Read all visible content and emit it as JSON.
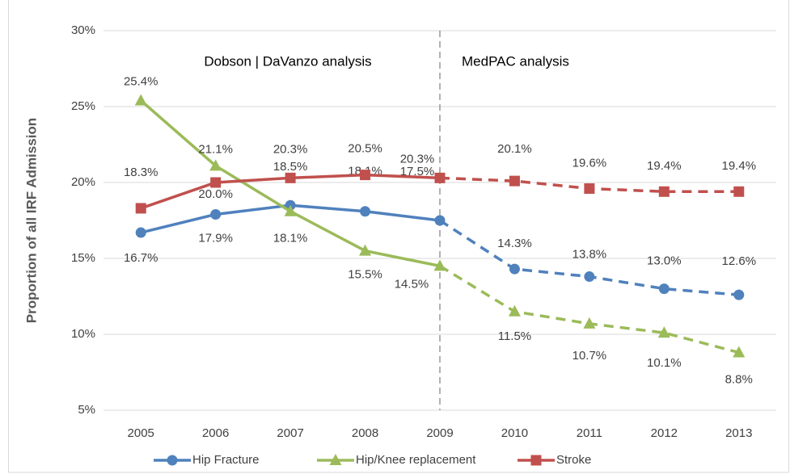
{
  "chart_data": {
    "type": "line",
    "y_label": "Proportion of all IRF Admission",
    "annotations": [
      "Dobson | DaVanzo analysis",
      "MedPAC analysis"
    ],
    "divider": "2009",
    "categories": [
      "2005",
      "2006",
      "2007",
      "2008",
      "2009",
      "2010",
      "2011",
      "2012",
      "2013"
    ],
    "series": [
      {
        "name": "Hip Fracture",
        "color": "#4f81bd",
        "marker": "circle",
        "values": [
          16.7,
          17.9,
          18.5,
          18.1,
          17.5,
          14.3,
          13.8,
          13.0,
          12.6
        ],
        "value_labels": [
          "16.7%",
          "17.9%",
          "18.5%",
          "18.1%",
          "17.5%",
          "14.3%",
          "13.8%",
          "13.0%",
          "12.6%"
        ]
      },
      {
        "name": "Hip/Knee replacement",
        "color": "#9bbb59",
        "marker": "triangle",
        "values": [
          25.4,
          21.1,
          18.1,
          15.5,
          14.5,
          11.5,
          10.7,
          10.1,
          8.8
        ],
        "value_labels": [
          "25.4%",
          "21.1%",
          "18.1%",
          "15.5%",
          "14.5%",
          "11.5%",
          "10.7%",
          "10.1%",
          "8.8%"
        ]
      },
      {
        "name": "Stroke",
        "color": "#c0504d",
        "marker": "square",
        "values": [
          18.3,
          20.0,
          20.3,
          20.5,
          20.3,
          20.1,
          19.6,
          19.4,
          19.4
        ],
        "value_labels": [
          "18.3%",
          "20.0%",
          "20.3%",
          "20.5%",
          "20.3%",
          "20.1%",
          "19.6%",
          "19.4%",
          "19.4%"
        ]
      }
    ],
    "ylim": [
      5,
      30
    ],
    "yticks": [
      {
        "value": 5,
        "label": "5%"
      },
      {
        "value": 10,
        "label": "10%"
      },
      {
        "value": 15,
        "label": "15%"
      },
      {
        "value": 20,
        "label": "20%"
      },
      {
        "value": 25,
        "label": "25%"
      },
      {
        "value": 30,
        "label": "30%"
      }
    ],
    "grid": true
  }
}
